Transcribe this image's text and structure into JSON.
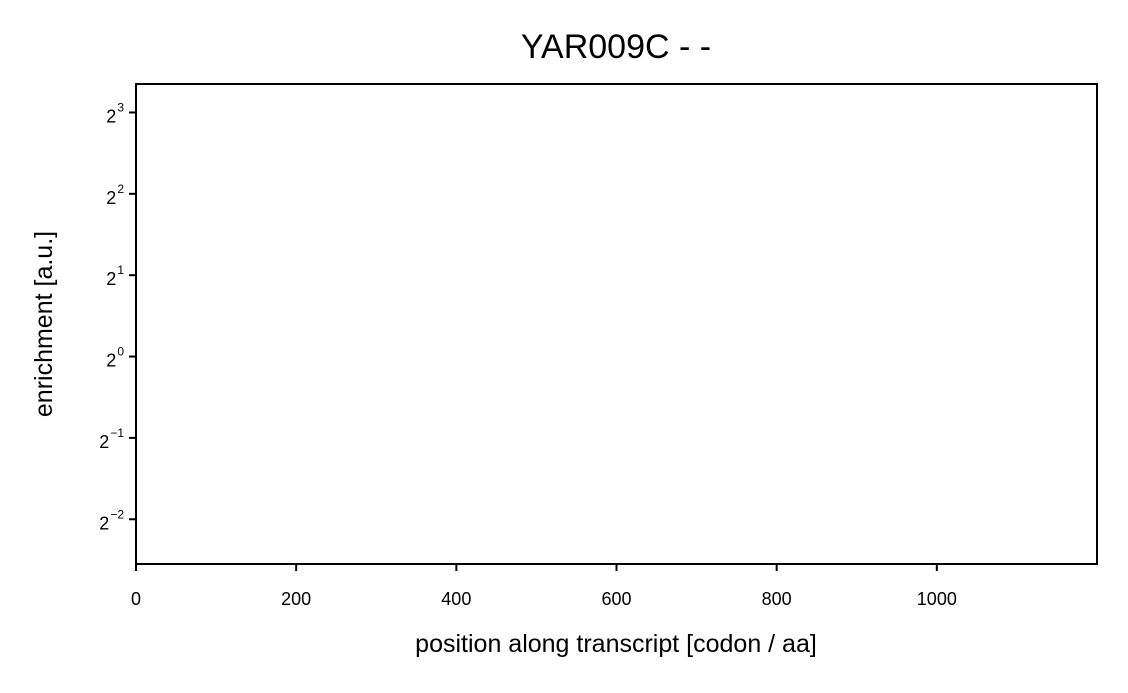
{
  "chart_data": {
    "type": "line",
    "title": "YAR009C - -",
    "xlabel": "position along transcript [codon / aa]",
    "ylabel": "enrichment [a.u.]",
    "xlim": [
      0,
      1200
    ],
    "ylim_log2": [
      -2.55,
      3.35
    ],
    "y_scale": "log2",
    "x_ticks": [
      {
        "value": 0,
        "label": "0"
      },
      {
        "value": 200,
        "label": "200"
      },
      {
        "value": 400,
        "label": "400"
      },
      {
        "value": 600,
        "label": "600"
      },
      {
        "value": 800,
        "label": "800"
      },
      {
        "value": 1000,
        "label": "1000"
      }
    ],
    "y_ticks": [
      {
        "exp": 3,
        "base": "2",
        "sup": "3"
      },
      {
        "exp": 2,
        "base": "2",
        "sup": "2"
      },
      {
        "exp": 1,
        "base": "2",
        "sup": "1"
      },
      {
        "exp": 0,
        "base": "2",
        "sup": "0"
      },
      {
        "exp": -1,
        "base": "2",
        "sup": "−1"
      },
      {
        "exp": -2,
        "base": "2",
        "sup": "−2"
      }
    ],
    "series": [],
    "grid": false,
    "legend": "none"
  }
}
